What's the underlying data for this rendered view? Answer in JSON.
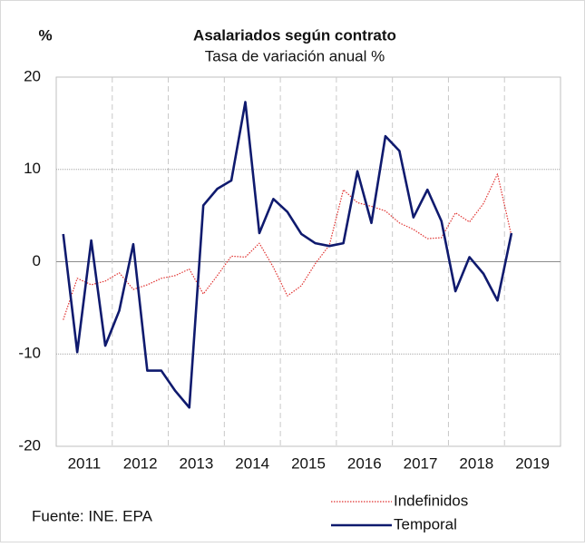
{
  "chart_data": {
    "type": "line",
    "title": "Asalariados según contrato",
    "subtitle": "Tasa de variación anual %",
    "y_label": "%",
    "source": "Fuente: INE. EPA",
    "categories": [
      "2011",
      null,
      null,
      null,
      "2012",
      null,
      null,
      null,
      "2013",
      null,
      null,
      null,
      "2014",
      null,
      null,
      null,
      "2015",
      null,
      null,
      null,
      "2016",
      null,
      null,
      null,
      "2017",
      null,
      null,
      null,
      "2018",
      null,
      null,
      null,
      "2019"
    ],
    "series": [
      {
        "name": "Indefinidos",
        "color": "#e0312f",
        "style": "dotted",
        "values": [
          -6.3,
          -1.8,
          -2.5,
          -2.1,
          -1.2,
          -3.0,
          -2.5,
          -1.8,
          -1.5,
          -0.8,
          -3.5,
          -1.5,
          0.6,
          0.5,
          2.0,
          -0.6,
          -3.7,
          -2.6,
          -0.2,
          1.8,
          7.8,
          6.4,
          6.0,
          5.5,
          4.2,
          3.5,
          2.5,
          2.6,
          5.3,
          4.3,
          6.3,
          9.5,
          2.8
        ]
      },
      {
        "name": "Temporal",
        "color": "#0f1a6e",
        "style": "solid",
        "values": [
          3.0,
          -9.8,
          2.3,
          -9.1,
          -5.3,
          1.9,
          -11.8,
          -11.8,
          -14.0,
          -15.8,
          6.1,
          7.9,
          8.8,
          17.3,
          3.1,
          6.8,
          5.4,
          3.0,
          2.0,
          1.7,
          2.0,
          9.8,
          4.2,
          13.6,
          12.0,
          4.8,
          7.8,
          4.4,
          -3.2,
          0.5,
          -1.3,
          -4.2,
          3.1
        ]
      }
    ],
    "ylim": [
      -20,
      20
    ],
    "yticks": [
      -20,
      -10,
      0,
      10,
      20
    ],
    "grid": true
  }
}
